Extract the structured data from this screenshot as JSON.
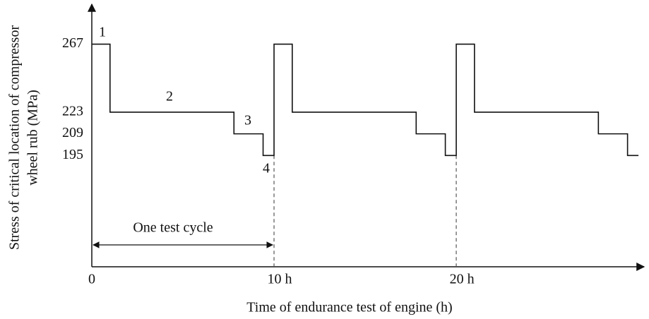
{
  "chart_data": {
    "type": "line",
    "step": "post",
    "x_label": "Time  of endurance test of engine (h)",
    "y_label": [
      "Stress of critical location of compressor",
      "wheel rub  (MPa)"
    ],
    "x": [
      0,
      1,
      7.8,
      9.4,
      10,
      11,
      17.8,
      19.4,
      20,
      21,
      27.8,
      29.4,
      30
    ],
    "values": [
      267,
      223,
      209,
      195,
      267,
      223,
      209,
      195,
      267,
      223,
      209,
      195,
      195
    ],
    "color": "#111111",
    "xlim": [
      0,
      30.5
    ],
    "ylim": [
      123,
      291
    ],
    "xticks": [
      0,
      {
        "value": 10,
        "label": "10 h"
      },
      {
        "value": 20,
        "label": "20 h"
      }
    ],
    "yticks": [
      195,
      209,
      223,
      267
    ],
    "annotations": [
      "1",
      "2",
      "3",
      "4",
      "One test cycle"
    ]
  }
}
